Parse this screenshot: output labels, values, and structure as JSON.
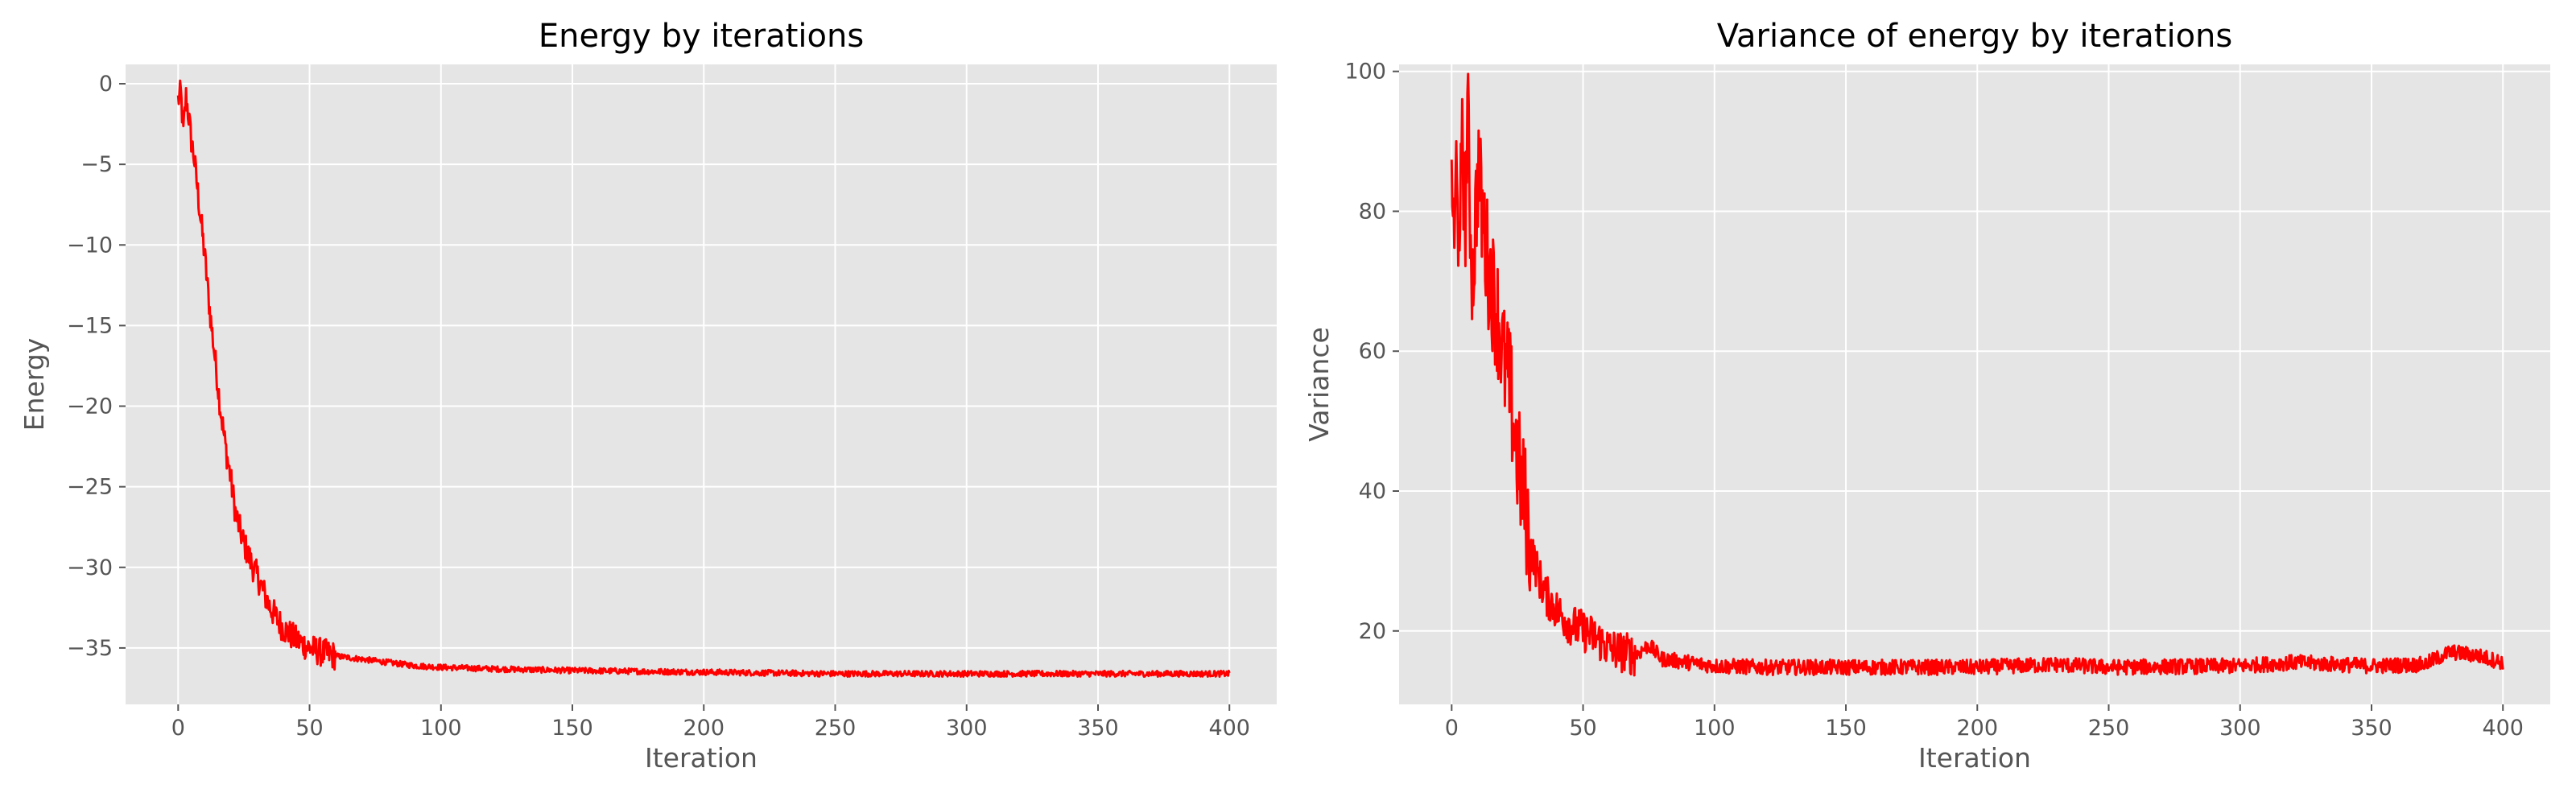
{
  "chart_data": [
    {
      "type": "line",
      "title": "Energy by iterations",
      "xlabel": "Iteration",
      "ylabel": "Energy",
      "xlim": [
        -20,
        418
      ],
      "ylim": [
        -38.5,
        1.2
      ],
      "xticks": [
        0,
        50,
        100,
        150,
        200,
        250,
        300,
        350,
        400
      ],
      "yticks": [
        0,
        -5,
        -10,
        -15,
        -20,
        -25,
        -30,
        -35
      ],
      "ytick_labels": [
        "0",
        "−5",
        "−10",
        "−15",
        "−20",
        "−25",
        "−30",
        "−35"
      ],
      "grid": true,
      "color": "#ff0000",
      "series": [
        {
          "x": [
            0,
            1,
            2,
            3,
            4,
            5,
            6,
            7,
            8,
            9,
            10,
            12,
            14,
            16,
            18,
            20,
            22,
            25,
            28,
            30,
            35,
            40,
            45,
            50,
            55,
            60,
            70,
            80,
            90,
            100,
            120,
            150,
            200,
            250,
            300,
            350,
            380,
            400
          ],
          "y": [
            -1.0,
            -0.6,
            -3.0,
            -0.8,
            -2.0,
            -3.5,
            -4.5,
            -6.0,
            -7.5,
            -9.0,
            -10.5,
            -14.0,
            -17.0,
            -20.0,
            -22.5,
            -24.5,
            -26.8,
            -28.5,
            -29.8,
            -30.5,
            -32.5,
            -33.8,
            -34.5,
            -35.0,
            -35.3,
            -35.5,
            -35.7,
            -35.9,
            -36.1,
            -36.2,
            -36.3,
            -36.4,
            -36.5,
            -36.6,
            -36.6,
            -36.6,
            -36.6,
            -36.6
          ]
        }
      ]
    },
    {
      "type": "line",
      "title": "Variance of energy by iterations",
      "xlabel": "Iteration",
      "ylabel": "Variance",
      "xlim": [
        -20,
        418
      ],
      "ylim": [
        9.5,
        101
      ],
      "xticks": [
        0,
        50,
        100,
        150,
        200,
        250,
        300,
        350,
        400
      ],
      "yticks": [
        20,
        40,
        60,
        80,
        100
      ],
      "ytick_labels": [
        "20",
        "40",
        "60",
        "80",
        "100"
      ],
      "grid": true,
      "color": "#ff0000",
      "series": [
        {
          "x": [
            0,
            1,
            2,
            3,
            4,
            5,
            6,
            7,
            8,
            10,
            12,
            14,
            16,
            18,
            20,
            22,
            24,
            26,
            28,
            30,
            33,
            36,
            40,
            45,
            50,
            55,
            60,
            65,
            70,
            75,
            80,
            90,
            100,
            120,
            150,
            200,
            230,
            250,
            300,
            320,
            350,
            370,
            380,
            390,
            400
          ],
          "y": [
            88,
            72,
            92,
            66,
            97,
            75,
            95,
            80,
            70,
            86,
            78,
            72,
            68,
            64,
            58,
            55,
            48,
            42,
            38,
            32,
            28,
            25,
            23,
            21,
            20,
            19,
            17.5,
            17,
            16.5,
            18,
            16,
            15.5,
            15,
            14.8,
            14.8,
            14.8,
            15.2,
            14.8,
            15.0,
            15.5,
            15.0,
            15.2,
            17.0,
            16.5,
            15.5
          ]
        }
      ]
    }
  ]
}
